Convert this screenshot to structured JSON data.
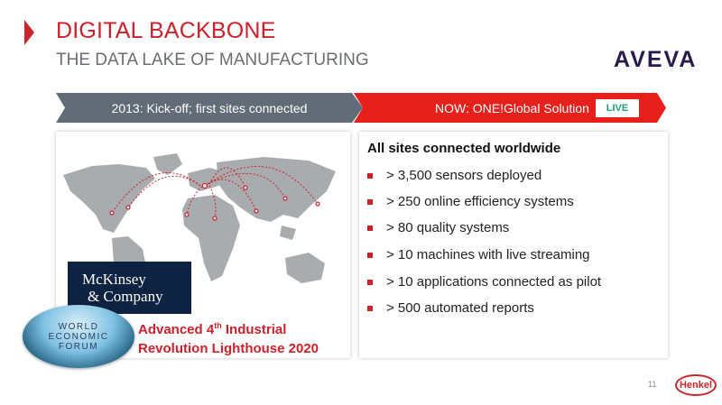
{
  "slide": {
    "title": "DIGITAL BACKBONE",
    "subtitle": "THE DATA LAKE OF MANUFACTURING",
    "partner_logo": "AVEVA",
    "page_number": "11",
    "brand_logo": "Henkel"
  },
  "timeline": {
    "past_label": "2013: Kick-off; first sites connected",
    "now_label": "NOW: ONE!Global Solution",
    "status_badge": "LIVE"
  },
  "highlights": {
    "heading": "All sites connected worldwide",
    "items": [
      "> 3,500 sensors deployed",
      "> 250 online efficiency systems",
      "> 80 quality systems",
      "> 10 machines with live streaming",
      "> 10 applications connected as pilot",
      "> 500 automated reports"
    ]
  },
  "award": {
    "mckinsey_line1": "McKinsey",
    "mckinsey_line2": "& Company",
    "wef_line1": "WORLD",
    "wef_line2": "ECONOMIC",
    "wef_line3": "FORUM",
    "text_pre": "Advanced 4",
    "text_sup": "th",
    "text_post": " Industrial",
    "text_line2": "Revolution Lighthouse 2020"
  },
  "colors": {
    "accent": "#d0202a",
    "banner_gray": "#626c76",
    "banner_red": "#e8201c",
    "live_green": "#1aa07a"
  }
}
